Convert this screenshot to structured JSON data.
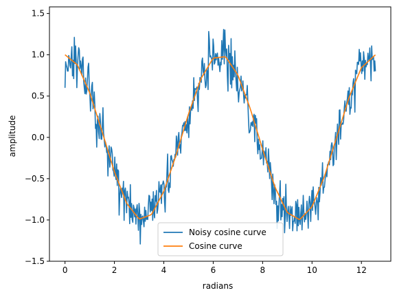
{
  "chart_data": {
    "type": "line",
    "xlabel": "radians",
    "ylabel": "amplitude",
    "xlim": [
      -0.63,
      13.19
    ],
    "ylim": [
      -1.5,
      1.58
    ],
    "x_range": [
      0,
      12.566
    ],
    "grid": false,
    "legend_position": "lower center",
    "x_ticks": [
      0,
      2,
      4,
      6,
      8,
      10,
      12
    ],
    "x_tick_labels": [
      "0",
      "2",
      "4",
      "6",
      "8",
      "10",
      "12"
    ],
    "y_ticks": [
      -1.5,
      -1.0,
      -0.5,
      0.0,
      0.5,
      1.0,
      1.5
    ],
    "y_tick_labels": [
      "−1.5",
      "−1.0",
      "−0.5",
      "0.0",
      "0.5",
      "1.0",
      "1.5"
    ],
    "series": [
      {
        "name": "Noisy cosine curve",
        "color": "#1f77b4",
        "x": [
          0.0,
          0.6,
          1.2,
          1.8,
          2.4,
          3.0,
          3.6,
          4.2,
          4.8,
          5.4,
          6.0,
          6.6,
          7.2,
          7.8,
          8.4,
          9.0,
          9.6,
          10.2,
          10.8,
          11.4,
          12.0,
          12.566
        ],
        "y": [
          0.6,
          1.22,
          0.35,
          -0.25,
          -0.7,
          -1.05,
          -0.75,
          -0.42,
          0.05,
          0.6,
          1.12,
          0.95,
          0.62,
          -0.2,
          -0.52,
          -1.15,
          -0.85,
          -0.7,
          -0.18,
          0.45,
          1.05,
          0.8
        ]
      },
      {
        "name": "Cosine curve",
        "color": "#ff7f0e",
        "x": [
          0.0,
          0.5,
          1.0,
          1.5,
          2.0,
          2.5,
          3.0,
          3.5,
          4.0,
          4.5,
          5.0,
          5.5,
          6.0,
          6.5,
          7.0,
          7.5,
          8.0,
          8.5,
          9.0,
          9.5,
          10.0,
          10.5,
          11.0,
          11.5,
          12.0,
          12.566
        ],
        "y": [
          1.0,
          0.878,
          0.54,
          0.071,
          -0.416,
          -0.801,
          -0.99,
          -0.936,
          -0.654,
          -0.211,
          0.284,
          0.709,
          0.96,
          0.977,
          0.754,
          0.347,
          -0.146,
          -0.602,
          -0.911,
          -0.997,
          -0.839,
          -0.476,
          0.004,
          0.483,
          0.844,
          1.0
        ]
      }
    ]
  }
}
